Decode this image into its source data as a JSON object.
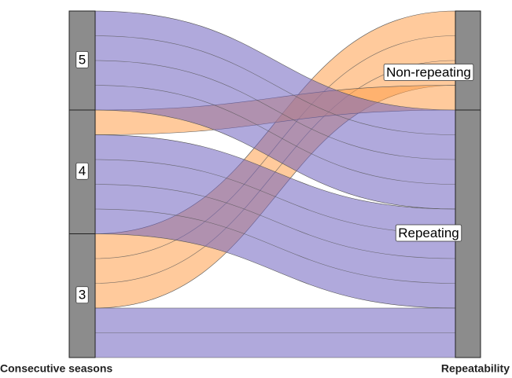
{
  "chart_data": {
    "type": "alluvial",
    "axes": [
      {
        "label": "Consecutive seasons",
        "strata": [
          "5",
          "4",
          "3"
        ]
      },
      {
        "label": "Repeatability",
        "strata": [
          "Non-repeating",
          "Repeating"
        ]
      }
    ],
    "flows": [
      {
        "from": "3",
        "to": "Non-repeating",
        "count": 3,
        "color": "#ff9f4a"
      },
      {
        "from": "4",
        "to": "Non-repeating",
        "count": 1,
        "color": "#ff9f4a"
      },
      {
        "from": "5",
        "to": "Repeating",
        "count": 4,
        "color": "#6f63c0"
      },
      {
        "from": "4",
        "to": "Repeating",
        "count": 4,
        "color": "#6f63c0"
      },
      {
        "from": "3",
        "to": "Repeating",
        "count": 2,
        "color": "#6f63c0"
      }
    ]
  }
}
